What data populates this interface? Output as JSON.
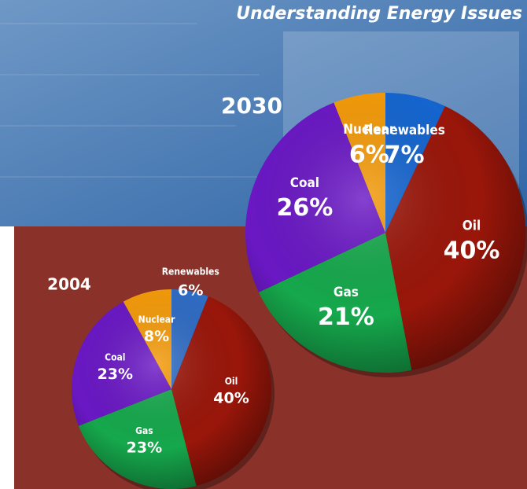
{
  "header": {
    "title": "Understanding Energy Issues"
  },
  "chart_data": [
    {
      "type": "pie",
      "title": "2030",
      "categories": [
        "Renewables",
        "Oil",
        "Gas",
        "Coal",
        "Nuclear"
      ],
      "values": [
        7,
        40,
        21,
        26,
        6
      ],
      "value_labels": [
        "7%",
        "40%",
        "21%",
        "26%",
        "6%"
      ],
      "colors": [
        "#1565cf",
        "#9a160a",
        "#16a84c",
        "#6a18c4",
        "#f39a0a"
      ]
    },
    {
      "type": "pie",
      "title": "2004",
      "categories": [
        "Renewables",
        "Oil",
        "Gas",
        "Coal",
        "Nuclear"
      ],
      "values": [
        6,
        40,
        23,
        23,
        8
      ],
      "value_labels": [
        "6%",
        "40%",
        "23%",
        "23%",
        "8%"
      ],
      "colors": [
        "#2f6cc4",
        "#9a160a",
        "#16a84c",
        "#6a18c4",
        "#f39a0a"
      ]
    }
  ]
}
